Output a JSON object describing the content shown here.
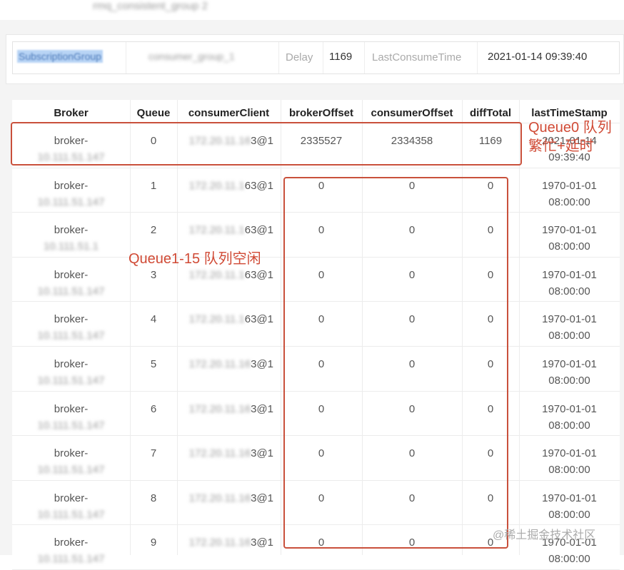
{
  "topbar": {
    "title": "rmq_consistent_group 2"
  },
  "summary": {
    "group_label": "SubscriptionGroup",
    "group_value": "consumer_group_1",
    "delay_label": "Delay",
    "delay_value": "1169",
    "time_label": "LastConsumeTime",
    "time_value": "2021-01-14 09:39:40"
  },
  "table": {
    "headers": [
      "Broker",
      "Queue",
      "consumerClient",
      "brokerOffset",
      "consumerOffset",
      "diffTotal",
      "lastTimeStamp"
    ],
    "rows": [
      {
        "broker": "broker-",
        "broker_masked": "10.111.51.147",
        "queue": "0",
        "client_masked": "172.20.11.16",
        "client": "3@1",
        "broker_offset": "2335527",
        "consumer_offset": "2334358",
        "diff": "1169",
        "timestamp": "2021-01-14 09:39:40"
      },
      {
        "broker": "broker-",
        "broker_masked": "10.111.51.147",
        "queue": "1",
        "client_masked": "172.20.11.1",
        "client": "63@1",
        "broker_offset": "0",
        "consumer_offset": "0",
        "diff": "0",
        "timestamp": "1970-01-01 08:00:00"
      },
      {
        "broker": "broker-",
        "broker_masked": "10.111.51.1",
        "queue": "2",
        "client_masked": "172.20.11.1",
        "client": "63@1",
        "broker_offset": "0",
        "consumer_offset": "0",
        "diff": "0",
        "timestamp": "1970-01-01 08:00:00"
      },
      {
        "broker": "broker-",
        "broker_masked": "10.111.51.147",
        "queue": "3",
        "client_masked": "172.20.11.1",
        "client": "63@1",
        "broker_offset": "0",
        "consumer_offset": "0",
        "diff": "0",
        "timestamp": "1970-01-01 08:00:00"
      },
      {
        "broker": "broker-",
        "broker_masked": "10.111.51.147",
        "queue": "4",
        "client_masked": "172.20.11.1",
        "client": "63@1",
        "broker_offset": "0",
        "consumer_offset": "0",
        "diff": "0",
        "timestamp": "1970-01-01 08:00:00"
      },
      {
        "broker": "broker-",
        "broker_masked": "10.111.51.147",
        "queue": "5",
        "client_masked": "172.20.11.16",
        "client": "3@1",
        "broker_offset": "0",
        "consumer_offset": "0",
        "diff": "0",
        "timestamp": "1970-01-01 08:00:00"
      },
      {
        "broker": "broker-",
        "broker_masked": "10.111.51.147",
        "queue": "6",
        "client_masked": "172.20.11.16",
        "client": "3@1",
        "broker_offset": "0",
        "consumer_offset": "0",
        "diff": "0",
        "timestamp": "1970-01-01 08:00:00"
      },
      {
        "broker": "broker-",
        "broker_masked": "10.111.51.147",
        "queue": "7",
        "client_masked": "172.20.11.16",
        "client": "3@1",
        "broker_offset": "0",
        "consumer_offset": "0",
        "diff": "0",
        "timestamp": "1970-01-01 08:00:00"
      },
      {
        "broker": "broker-",
        "broker_masked": "10.111.51.147",
        "queue": "8",
        "client_masked": "172.20.11.16",
        "client": "3@1",
        "broker_offset": "0",
        "consumer_offset": "0",
        "diff": "0",
        "timestamp": "1970-01-01 08:00:00"
      },
      {
        "broker": "broker-",
        "broker_masked": "10.111.51.147",
        "queue": "9",
        "client_masked": "172.20.11.16",
        "client": "3@1",
        "broker_offset": "0",
        "consumer_offset": "0",
        "diff": "0",
        "timestamp": "1970-01-01 08:00:00"
      }
    ]
  },
  "annotations": {
    "busy": "Queue0 队列繁忙+延时",
    "idle": "Queue1-15 队列空闲"
  },
  "watermark": "@稀土掘金技术社区"
}
